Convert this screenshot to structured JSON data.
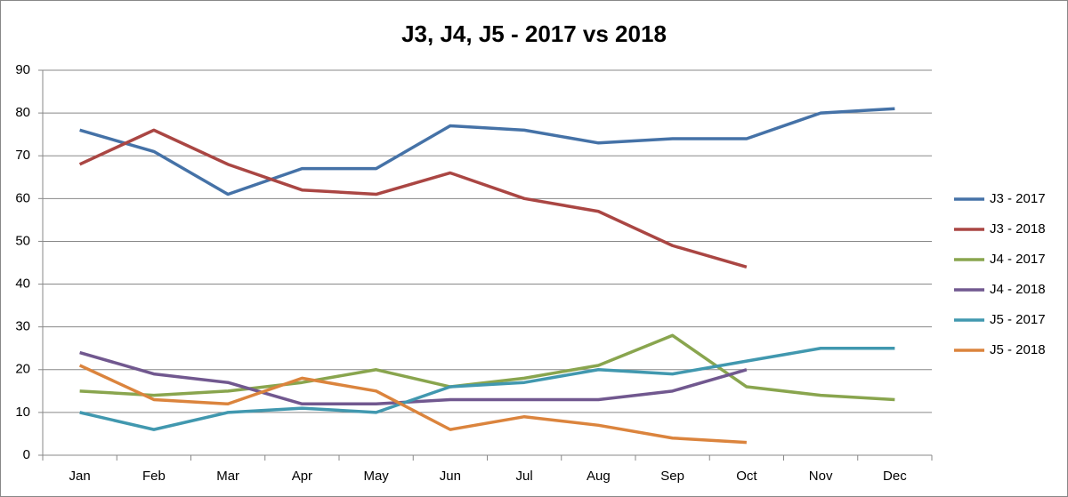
{
  "chart_data": {
    "type": "line",
    "title": "J3, J4, J5 - 2017 vs 2018",
    "categories": [
      "Jan",
      "Feb",
      "Mar",
      "Apr",
      "May",
      "Jun",
      "Jul",
      "Aug",
      "Sep",
      "Oct",
      "Nov",
      "Dec"
    ],
    "series": [
      {
        "name": "J3 - 2017",
        "color": "#4572a7",
        "values": [
          76,
          71,
          61,
          67,
          67,
          77,
          76,
          73,
          74,
          74,
          80,
          81
        ]
      },
      {
        "name": "J3 - 2018",
        "color": "#aa4643",
        "values": [
          68,
          76,
          68,
          62,
          61,
          66,
          60,
          57,
          49,
          44,
          null,
          null
        ]
      },
      {
        "name": "J4 - 2017",
        "color": "#89a54e",
        "values": [
          15,
          14,
          15,
          17,
          20,
          16,
          18,
          21,
          28,
          16,
          14,
          13
        ]
      },
      {
        "name": "J4 - 2018",
        "color": "#71588f",
        "values": [
          24,
          19,
          17,
          12,
          12,
          13,
          13,
          13,
          15,
          20,
          null,
          null
        ]
      },
      {
        "name": "J5 - 2017",
        "color": "#4198af",
        "values": [
          10,
          6,
          10,
          11,
          10,
          16,
          17,
          20,
          19,
          22,
          25,
          25
        ]
      },
      {
        "name": "J5 - 2018",
        "color": "#db843d",
        "values": [
          21,
          13,
          12,
          18,
          15,
          6,
          9,
          7,
          4,
          3,
          null,
          null
        ]
      }
    ],
    "ylim": [
      0,
      90
    ],
    "yticks": [
      0,
      10,
      20,
      30,
      40,
      50,
      60,
      70,
      80,
      90
    ],
    "grid": true,
    "legend": "right"
  }
}
